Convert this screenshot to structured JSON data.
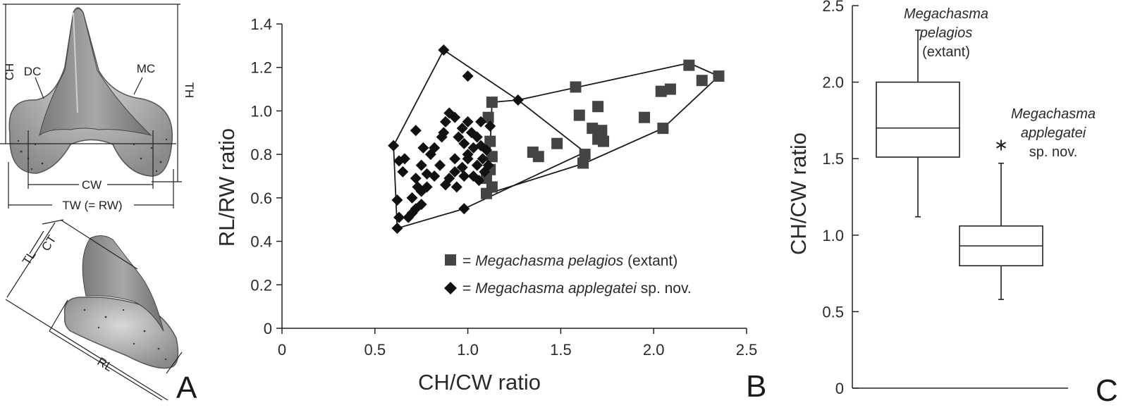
{
  "colors": {
    "ink": "#1a1a1a",
    "square": "#444444",
    "diamond": "#111111",
    "tooth": "#9a9a9a"
  },
  "panel_a": {
    "letter": "A",
    "upper_labels": {
      "ch": "CH",
      "dc": "DC",
      "mc": "MC",
      "th": "TH",
      "cw": "CW",
      "tw": "TW (= RW)"
    },
    "lower_labels": {
      "tl": "TL",
      "ct": "CT",
      "rl": "RL"
    }
  },
  "panel_b": {
    "letter": "B"
  },
  "panel_c": {
    "letter": "C"
  },
  "chart_data": [
    {
      "type": "scatter",
      "panel": "B",
      "xlabel": "CH/CW ratio",
      "ylabel": "RL/RW ratio",
      "xlim": [
        0,
        2.5
      ],
      "ylim": [
        0,
        1.4
      ],
      "xticks": [
        "0",
        "0.5",
        "1.0",
        "1.5",
        "2.0",
        "2.5"
      ],
      "yticks": [
        "0",
        "0.2",
        "0.4",
        "0.6",
        "0.8",
        "1.0",
        "1.2",
        "1.4"
      ],
      "legend": [
        {
          "eq": "= ",
          "name": "Megachasma pelagios",
          "suffix": " (extant)"
        },
        {
          "eq": "= ",
          "name": "Megachasma applegatei",
          "suffix": " sp. nov."
        }
      ],
      "series": [
        {
          "name": "Megachasma pelagios (extant)",
          "marker": "square",
          "points": [
            [
              1.13,
              1.04
            ],
            [
              1.11,
              0.97
            ],
            [
              1.12,
              0.86
            ],
            [
              1.13,
              0.79
            ],
            [
              1.12,
              0.73
            ],
            [
              1.1,
              0.69
            ],
            [
              1.13,
              0.65
            ],
            [
              1.1,
              0.62
            ],
            [
              1.38,
              0.79
            ],
            [
              1.35,
              0.81
            ],
            [
              1.48,
              0.85
            ],
            [
              1.58,
              1.11
            ],
            [
              1.6,
              0.98
            ],
            [
              1.7,
              1.02
            ],
            [
              1.67,
              0.92
            ],
            [
              1.72,
              0.91
            ],
            [
              1.7,
              0.87
            ],
            [
              1.73,
              0.86
            ],
            [
              1.63,
              0.8
            ],
            [
              1.62,
              0.76
            ],
            [
              1.95,
              0.97
            ],
            [
              2.04,
              1.09
            ],
            [
              2.09,
              1.1
            ],
            [
              2.05,
              0.92
            ],
            [
              2.19,
              1.21
            ],
            [
              2.26,
              1.14
            ],
            [
              2.35,
              1.16
            ]
          ],
          "hull": [
            [
              1.11,
              0.62
            ],
            [
              1.13,
              1.04
            ],
            [
              1.27,
              1.05
            ],
            [
              2.19,
              1.22
            ],
            [
              2.35,
              1.16
            ],
            [
              2.05,
              0.92
            ],
            [
              1.63,
              0.76
            ]
          ]
        },
        {
          "name": "Megachasma applegatei sp. nov.",
          "marker": "diamond",
          "points": [
            [
              0.87,
              1.28
            ],
            [
              1.0,
              1.16
            ],
            [
              1.27,
              1.05
            ],
            [
              0.6,
              0.84
            ],
            [
              0.63,
              0.77
            ],
            [
              0.66,
              0.78
            ],
            [
              0.65,
              0.72
            ],
            [
              0.62,
              0.59
            ],
            [
              0.63,
              0.51
            ],
            [
              0.68,
              0.51
            ],
            [
              0.72,
              0.55
            ],
            [
              0.75,
              0.57
            ],
            [
              0.7,
              0.6
            ],
            [
              0.75,
              0.63
            ],
            [
              0.78,
              0.65
            ],
            [
              0.72,
              0.69
            ],
            [
              0.75,
              0.75
            ],
            [
              0.8,
              0.8
            ],
            [
              0.82,
              0.83
            ],
            [
              0.86,
              0.88
            ],
            [
              0.87,
              0.9
            ],
            [
              0.88,
              0.95
            ],
            [
              0.9,
              0.99
            ],
            [
              0.93,
              0.97
            ],
            [
              0.97,
              0.92
            ],
            [
              0.98,
              0.85
            ],
            [
              1.0,
              0.8
            ],
            [
              0.97,
              0.74
            ],
            [
              0.93,
              0.72
            ],
            [
              0.9,
              0.69
            ],
            [
              0.94,
              0.65
            ],
            [
              0.98,
              0.7
            ],
            [
              1.0,
              0.78
            ],
            [
              1.03,
              0.83
            ],
            [
              1.05,
              0.88
            ],
            [
              1.07,
              0.84
            ],
            [
              1.1,
              0.82
            ],
            [
              1.08,
              0.78
            ],
            [
              1.05,
              0.75
            ],
            [
              1.03,
              0.7
            ],
            [
              1.06,
              0.68
            ],
            [
              1.09,
              0.72
            ],
            [
              1.11,
              0.75
            ],
            [
              1.07,
              0.95
            ],
            [
              1.0,
              0.95
            ],
            [
              0.95,
              0.88
            ],
            [
              0.72,
              0.91
            ],
            [
              0.76,
              0.83
            ],
            [
              0.78,
              0.71
            ],
            [
              0.88,
              0.66
            ],
            [
              0.98,
              0.55
            ],
            [
              0.62,
              0.46
            ],
            [
              0.7,
              0.53
            ],
            [
              0.85,
              0.75
            ],
            [
              0.93,
              0.78
            ],
            [
              1.02,
              0.9
            ],
            [
              1.12,
              0.93
            ],
            [
              0.73,
              0.65
            ],
            [
              0.82,
              0.7
            ]
          ],
          "hull": [
            [
              0.62,
              0.46
            ],
            [
              0.6,
              0.84
            ],
            [
              0.87,
              1.28
            ],
            [
              1.27,
              1.05
            ],
            [
              1.63,
              0.81
            ],
            [
              0.98,
              0.55
            ],
            [
              0.62,
              0.46
            ]
          ]
        }
      ]
    },
    {
      "type": "boxplot",
      "panel": "C",
      "ylabel": "CH/CW ratio",
      "ylim": [
        0,
        2.5
      ],
      "yticks": [
        "0",
        "0.5",
        "1.0",
        "1.5",
        "2.0",
        "2.5"
      ],
      "boxes": [
        {
          "name": "Megachasma pelagios (extant)",
          "label_lines": [
            "Megachasma",
            "pelagios",
            "(extant)"
          ],
          "whisker_low": 1.12,
          "q1": 1.51,
          "median": 1.7,
          "q3": 2.0,
          "whisker_high": 2.34,
          "outliers": []
        },
        {
          "name": "Megachasma applegatei sp. nov.",
          "label_lines": [
            "Megachasma",
            "applegatei",
            "sp. nov."
          ],
          "whisker_low": 0.58,
          "q1": 0.8,
          "median": 0.93,
          "q3": 1.06,
          "whisker_high": 1.47,
          "outliers": [
            1.6
          ]
        }
      ]
    }
  ]
}
